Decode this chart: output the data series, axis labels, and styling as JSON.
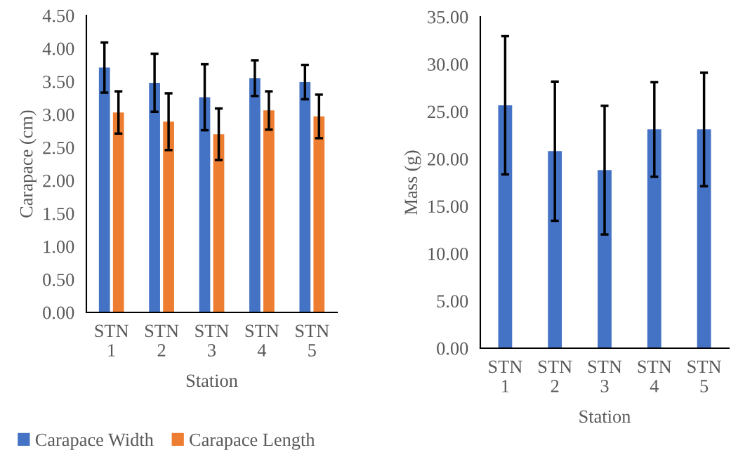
{
  "chart_data": [
    {
      "type": "bar",
      "xlabel": "Station",
      "ylabel": "Carapace (cm)",
      "categories": [
        "STN 1",
        "STN 2",
        "STN 3",
        "STN 4",
        "STN 5"
      ],
      "series": [
        {
          "name": "Carapace Width",
          "color": "#4472c4",
          "values": [
            3.71,
            3.48,
            3.26,
            3.55,
            3.49
          ],
          "errors": [
            0.38,
            0.44,
            0.5,
            0.27,
            0.26
          ]
        },
        {
          "name": "Carapace Length",
          "color": "#ed7d31",
          "values": [
            3.03,
            2.89,
            2.7,
            3.06,
            2.97
          ],
          "errors": [
            0.32,
            0.43,
            0.39,
            0.29,
            0.33
          ]
        }
      ],
      "ylim": [
        0,
        4.5
      ],
      "yticks": [
        {
          "value": 0,
          "label": "0.00"
        },
        {
          "value": 0.5,
          "label": "0.50"
        },
        {
          "value": 1,
          "label": "1.00"
        },
        {
          "value": 1.5,
          "label": "1.50"
        },
        {
          "value": 2,
          "label": "2.00"
        },
        {
          "value": 2.5,
          "label": "2.50"
        },
        {
          "value": 3,
          "label": "3.00"
        },
        {
          "value": 3.5,
          "label": "3.50"
        },
        {
          "value": 4,
          "label": "4.00"
        },
        {
          "value": 4.5,
          "label": "4.50"
        }
      ],
      "grid": false,
      "legend": "bottom"
    },
    {
      "type": "bar",
      "xlabel": "Station",
      "ylabel": "Mass (g)",
      "categories": [
        "STN 1",
        "STN 2",
        "STN 3",
        "STN 4",
        "STN 5"
      ],
      "series": [
        {
          "color": "#4472c4",
          "values": [
            25.66,
            20.81,
            18.81,
            23.11,
            23.11
          ],
          "errors": [
            7.3,
            7.35,
            6.8,
            5.0,
            6.0
          ]
        }
      ],
      "ylim": [
        0,
        35
      ],
      "yticks": [
        {
          "value": 0,
          "label": "0.00"
        },
        {
          "value": 5,
          "label": "5.00"
        },
        {
          "value": 10,
          "label": "10.00"
        },
        {
          "value": 15,
          "label": "15.00"
        },
        {
          "value": 20,
          "label": "20.00"
        },
        {
          "value": 25,
          "label": "25.00"
        },
        {
          "value": 30,
          "label": "30.00"
        },
        {
          "value": 35,
          "label": "35.00"
        }
      ],
      "grid": false,
      "legend": false
    }
  ]
}
